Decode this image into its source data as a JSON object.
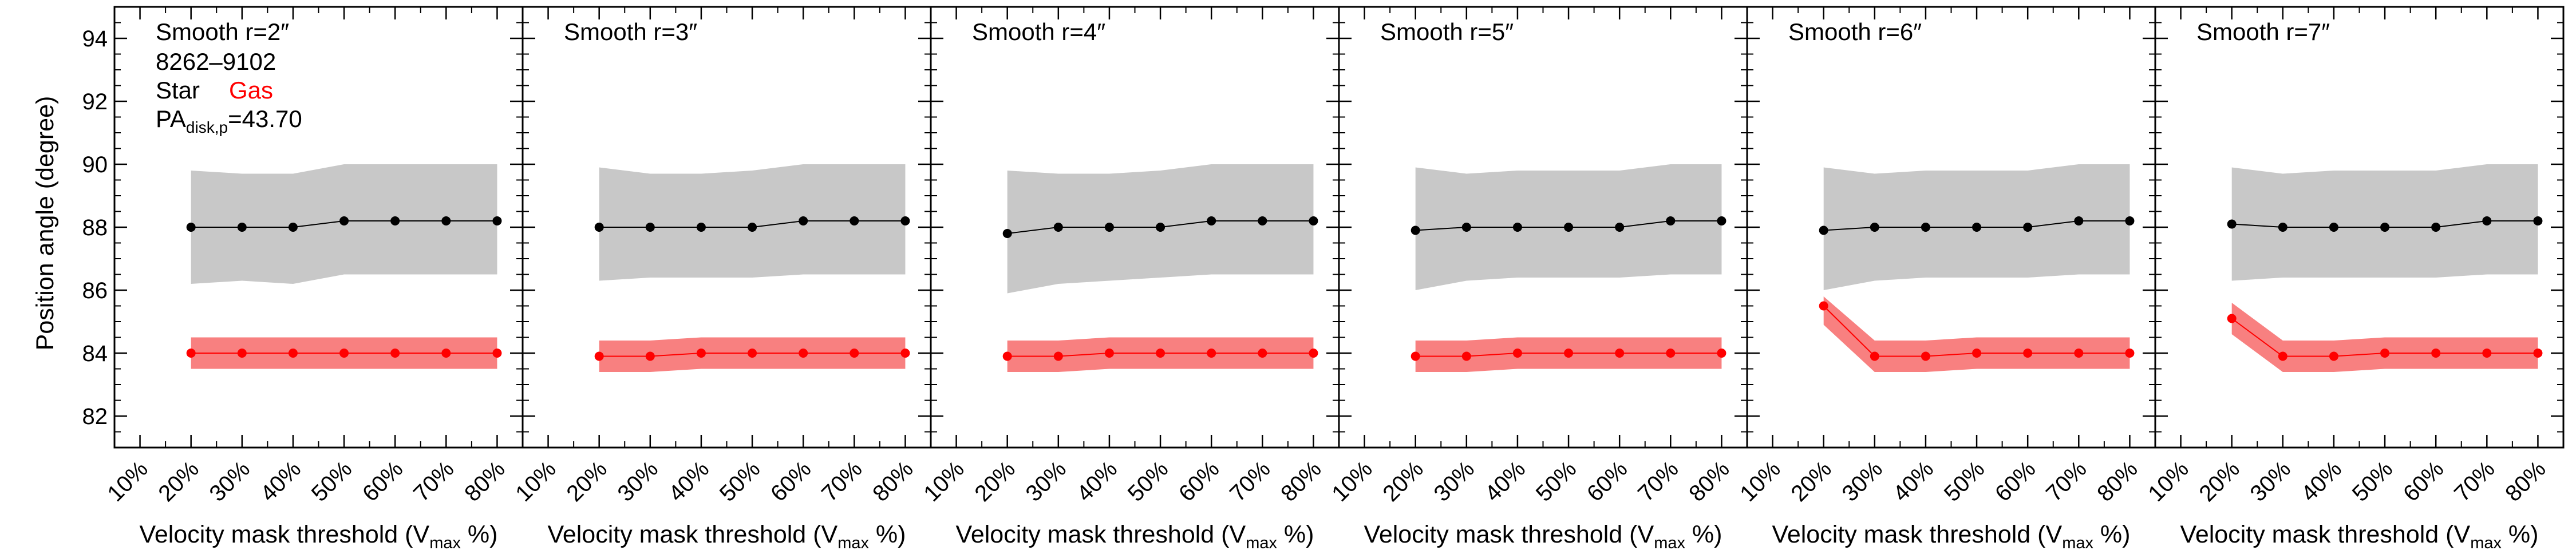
{
  "colors": {
    "star": "#000000",
    "star_band": "#c8c8c8",
    "gas": "#ff0000",
    "gas_band": "#f88080"
  },
  "annotations": {
    "galaxy_id": "8262–9102",
    "legend_star": "Star",
    "legend_gas": "Gas",
    "pa_prefix": "PA",
    "pa_subscript": "disk,p",
    "pa_value": "=43.70"
  },
  "chart_data": [
    {
      "type": "line",
      "title": "Smooth r=2″",
      "xlabel": "Velocity mask threshold (V",
      "xlabel_sub": "max",
      "xlabel_end": " %)",
      "ylabel": "Position angle (degree)",
      "x": [
        20,
        30,
        40,
        50,
        60,
        70,
        80
      ],
      "xticks": [
        10,
        20,
        30,
        40,
        50,
        60,
        70,
        80
      ],
      "xtick_labels": [
        "10%",
        "20%",
        "30%",
        "40%",
        "50%",
        "60%",
        "70%",
        "80%"
      ],
      "xlim": [
        5,
        85
      ],
      "ylim": [
        81,
        95
      ],
      "yticks": [
        82,
        84,
        86,
        88,
        90,
        92,
        94
      ],
      "series": [
        {
          "name": "Star",
          "values": [
            88.0,
            88.0,
            88.0,
            88.2,
            88.2,
            88.2,
            88.2
          ],
          "band_low": [
            86.2,
            86.3,
            86.2,
            86.5,
            86.5,
            86.5,
            86.5
          ],
          "band_high": [
            89.8,
            89.7,
            89.7,
            90.0,
            90.0,
            90.0,
            90.0
          ]
        },
        {
          "name": "Gas",
          "values": [
            84.0,
            84.0,
            84.0,
            84.0,
            84.0,
            84.0,
            84.0
          ],
          "band_low": [
            83.5,
            83.5,
            83.5,
            83.5,
            83.5,
            83.5,
            83.5
          ],
          "band_high": [
            84.5,
            84.5,
            84.5,
            84.5,
            84.5,
            84.5,
            84.5
          ]
        }
      ]
    },
    {
      "type": "line",
      "title": "Smooth r=3″",
      "xlabel": "Velocity mask threshold (V",
      "xlabel_sub": "max",
      "xlabel_end": " %)",
      "x": [
        20,
        30,
        40,
        50,
        60,
        70,
        80
      ],
      "xticks": [
        10,
        20,
        30,
        40,
        50,
        60,
        70,
        80
      ],
      "xtick_labels": [
        "10%",
        "20%",
        "30%",
        "40%",
        "50%",
        "60%",
        "70%",
        "80%"
      ],
      "xlim": [
        5,
        85
      ],
      "ylim": [
        81,
        95
      ],
      "series": [
        {
          "name": "Star",
          "values": [
            88.0,
            88.0,
            88.0,
            88.0,
            88.2,
            88.2,
            88.2
          ],
          "band_low": [
            86.3,
            86.4,
            86.4,
            86.4,
            86.5,
            86.5,
            86.5
          ],
          "band_high": [
            89.9,
            89.7,
            89.7,
            89.8,
            90.0,
            90.0,
            90.0
          ]
        },
        {
          "name": "Gas",
          "values": [
            83.9,
            83.9,
            84.0,
            84.0,
            84.0,
            84.0,
            84.0
          ],
          "band_low": [
            83.4,
            83.4,
            83.5,
            83.5,
            83.5,
            83.5,
            83.5
          ],
          "band_high": [
            84.4,
            84.4,
            84.5,
            84.5,
            84.5,
            84.5,
            84.5
          ]
        }
      ]
    },
    {
      "type": "line",
      "title": "Smooth r=4″",
      "xlabel": "Velocity mask threshold (V",
      "xlabel_sub": "max",
      "xlabel_end": " %)",
      "x": [
        20,
        30,
        40,
        50,
        60,
        70,
        80
      ],
      "xticks": [
        10,
        20,
        30,
        40,
        50,
        60,
        70,
        80
      ],
      "xtick_labels": [
        "10%",
        "20%",
        "30%",
        "40%",
        "50%",
        "60%",
        "70%",
        "80%"
      ],
      "xlim": [
        5,
        85
      ],
      "ylim": [
        81,
        95
      ],
      "series": [
        {
          "name": "Star",
          "values": [
            87.8,
            88.0,
            88.0,
            88.0,
            88.2,
            88.2,
            88.2
          ],
          "band_low": [
            85.9,
            86.2,
            86.3,
            86.4,
            86.5,
            86.5,
            86.5
          ],
          "band_high": [
            89.8,
            89.7,
            89.7,
            89.8,
            90.0,
            90.0,
            90.0
          ]
        },
        {
          "name": "Gas",
          "values": [
            83.9,
            83.9,
            84.0,
            84.0,
            84.0,
            84.0,
            84.0
          ],
          "band_low": [
            83.4,
            83.4,
            83.5,
            83.5,
            83.5,
            83.5,
            83.5
          ],
          "band_high": [
            84.4,
            84.4,
            84.5,
            84.5,
            84.5,
            84.5,
            84.5
          ]
        }
      ]
    },
    {
      "type": "line",
      "title": "Smooth r=5″",
      "xlabel": "Velocity mask threshold (V",
      "xlabel_sub": "max",
      "xlabel_end": " %)",
      "x": [
        20,
        30,
        40,
        50,
        60,
        70,
        80
      ],
      "xticks": [
        10,
        20,
        30,
        40,
        50,
        60,
        70,
        80
      ],
      "xtick_labels": [
        "10%",
        "20%",
        "30%",
        "40%",
        "50%",
        "60%",
        "70%",
        "80%"
      ],
      "xlim": [
        5,
        85
      ],
      "ylim": [
        81,
        95
      ],
      "series": [
        {
          "name": "Star",
          "values": [
            87.9,
            88.0,
            88.0,
            88.0,
            88.0,
            88.2,
            88.2
          ],
          "band_low": [
            86.0,
            86.3,
            86.4,
            86.4,
            86.4,
            86.5,
            86.5
          ],
          "band_high": [
            89.9,
            89.7,
            89.8,
            89.8,
            89.8,
            90.0,
            90.0
          ]
        },
        {
          "name": "Gas",
          "values": [
            83.9,
            83.9,
            84.0,
            84.0,
            84.0,
            84.0,
            84.0
          ],
          "band_low": [
            83.4,
            83.4,
            83.5,
            83.5,
            83.5,
            83.5,
            83.5
          ],
          "band_high": [
            84.4,
            84.4,
            84.5,
            84.5,
            84.5,
            84.5,
            84.5
          ]
        }
      ]
    },
    {
      "type": "line",
      "title": "Smooth r=6″",
      "xlabel": "Velocity mask threshold (V",
      "xlabel_sub": "max",
      "xlabel_end": " %)",
      "x": [
        20,
        30,
        40,
        50,
        60,
        70,
        80
      ],
      "xticks": [
        10,
        20,
        30,
        40,
        50,
        60,
        70,
        80
      ],
      "xtick_labels": [
        "10%",
        "20%",
        "30%",
        "40%",
        "50%",
        "60%",
        "70%",
        "80%"
      ],
      "xlim": [
        5,
        85
      ],
      "ylim": [
        81,
        95
      ],
      "series": [
        {
          "name": "Star",
          "values": [
            87.9,
            88.0,
            88.0,
            88.0,
            88.0,
            88.2,
            88.2
          ],
          "band_low": [
            86.0,
            86.3,
            86.4,
            86.4,
            86.4,
            86.5,
            86.5
          ],
          "band_high": [
            89.9,
            89.7,
            89.8,
            89.8,
            89.8,
            90.0,
            90.0
          ]
        },
        {
          "name": "Gas",
          "values": [
            85.5,
            83.9,
            83.9,
            84.0,
            84.0,
            84.0,
            84.0
          ],
          "band_low": [
            84.9,
            83.4,
            83.4,
            83.5,
            83.5,
            83.5,
            83.5
          ],
          "band_high": [
            85.8,
            84.4,
            84.4,
            84.5,
            84.5,
            84.5,
            84.5
          ]
        }
      ]
    },
    {
      "type": "line",
      "title": "Smooth r=7″",
      "xlabel": "Velocity mask threshold (V",
      "xlabel_sub": "max",
      "xlabel_end": " %)",
      "x": [
        20,
        30,
        40,
        50,
        60,
        70,
        80
      ],
      "xticks": [
        10,
        20,
        30,
        40,
        50,
        60,
        70,
        80
      ],
      "xtick_labels": [
        "10%",
        "20%",
        "30%",
        "40%",
        "50%",
        "60%",
        "70%",
        "80%"
      ],
      "xlim": [
        5,
        85
      ],
      "ylim": [
        81,
        95
      ],
      "series": [
        {
          "name": "Star",
          "values": [
            88.1,
            88.0,
            88.0,
            88.0,
            88.0,
            88.2,
            88.2
          ],
          "band_low": [
            86.3,
            86.4,
            86.4,
            86.4,
            86.4,
            86.5,
            86.5
          ],
          "band_high": [
            89.9,
            89.7,
            89.8,
            89.8,
            89.8,
            90.0,
            90.0
          ]
        },
        {
          "name": "Gas",
          "values": [
            85.1,
            83.9,
            83.9,
            84.0,
            84.0,
            84.0,
            84.0
          ],
          "band_low": [
            84.6,
            83.4,
            83.4,
            83.5,
            83.5,
            83.5,
            83.5
          ],
          "band_high": [
            85.6,
            84.4,
            84.4,
            84.5,
            84.5,
            84.5,
            84.5
          ]
        }
      ]
    }
  ]
}
